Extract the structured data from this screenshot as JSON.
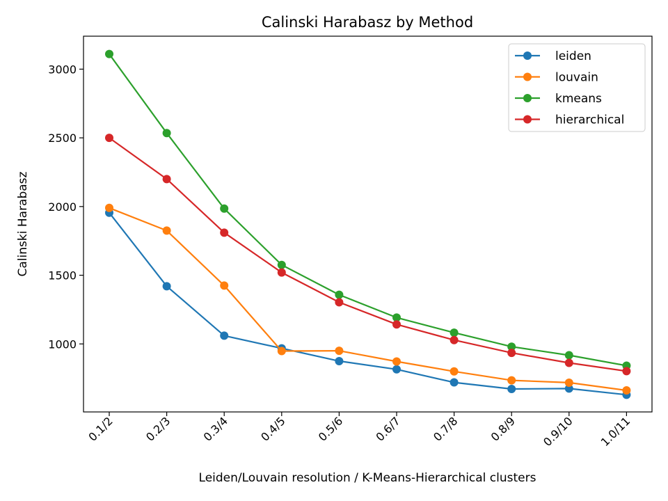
{
  "chart_data": {
    "type": "line",
    "title": "Calinski Harabasz by Method",
    "xlabel": "Leiden/Louvain resolution  /  K-Means-Hierarchical clusters",
    "ylabel": "Calinski Harabasz",
    "categories": [
      "0.1/2",
      "0.2/3",
      "0.3/4",
      "0.4/5",
      "0.5/6",
      "0.6/7",
      "0.7/8",
      "0.8/9",
      "0.9/10",
      "1.0/11"
    ],
    "ylim": [
      505,
      3240
    ],
    "yticks": [
      1000,
      1500,
      2000,
      2500,
      3000
    ],
    "grid": false,
    "legend_position": "top-right",
    "series": [
      {
        "name": "leiden",
        "color": "#1f77b4",
        "values": [
          1955,
          1420,
          1060,
          968,
          875,
          815,
          720,
          672,
          675,
          630
        ]
      },
      {
        "name": "louvain",
        "color": "#ff7f0e",
        "values": [
          1990,
          1825,
          1425,
          948,
          950,
          872,
          800,
          735,
          718,
          662
        ]
      },
      {
        "name": "kmeans",
        "color": "#2ca02c",
        "values": [
          3110,
          2535,
          1985,
          1575,
          1358,
          1192,
          1082,
          980,
          918,
          842
        ]
      },
      {
        "name": "hierarchical",
        "color": "#d62728",
        "values": [
          2500,
          2200,
          1810,
          1520,
          1303,
          1142,
          1028,
          935,
          862,
          802
        ]
      }
    ]
  }
}
